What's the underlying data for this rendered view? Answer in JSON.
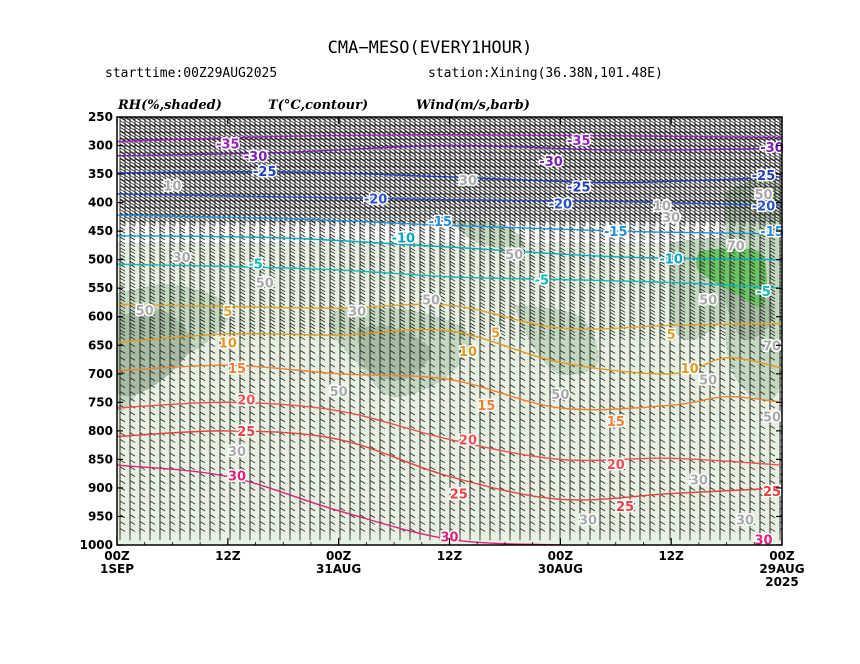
{
  "header": {
    "title": "CMA−MESO(EVERY1HOUR)",
    "starttime": "starttime:00Z29AUG2025",
    "station": "station:Xining(36.38N,101.48E)"
  },
  "legend": {
    "rh": "RH(%,shaded)",
    "temp": "T(°C,contour)",
    "wind": "Wind(m/s,barb)"
  },
  "chart_data": {
    "type": "time-height cross section",
    "y_axis": {
      "ticks": [
        250,
        300,
        350,
        400,
        450,
        500,
        550,
        600,
        650,
        700,
        750,
        800,
        850,
        900,
        950,
        1000
      ],
      "range": [
        250,
        1000
      ],
      "direction": "pressure increases downward"
    },
    "x_axis": {
      "range_hours": [
        72,
        0
      ],
      "direction": "time decreases to the right",
      "ticks": [
        {
          "hour": 72,
          "label": "00Z",
          "sub": "1SEP"
        },
        {
          "hour": 60,
          "label": "12Z",
          "sub": ""
        },
        {
          "hour": 48,
          "label": "00Z",
          "sub": "31AUG"
        },
        {
          "hour": 36,
          "label": "12Z",
          "sub": ""
        },
        {
          "hour": 24,
          "label": "00Z",
          "sub": "30AUG"
        },
        {
          "hour": 12,
          "label": "12Z",
          "sub": ""
        },
        {
          "hour": 0,
          "label": "00Z",
          "sub": "29AUG",
          "sub2": "2025"
        }
      ]
    },
    "temperature_contours": [
      {
        "value": -35,
        "color": "#9a1fc0",
        "points": [
          [
            72,
            293
          ],
          [
            54,
            284
          ],
          [
            36,
            281
          ],
          [
            18,
            283
          ],
          [
            0,
            286
          ]
        ]
      },
      {
        "value": -30,
        "color": "#7a1fb0",
        "points": [
          [
            72,
            318
          ],
          [
            54,
            312
          ],
          [
            36,
            300
          ],
          [
            18,
            308
          ],
          [
            0,
            305
          ]
        ]
      },
      {
        "value": -25,
        "color": "#1f3fc0",
        "points": [
          [
            72,
            348
          ],
          [
            54,
            346
          ],
          [
            36,
            355
          ],
          [
            18,
            365
          ],
          [
            0,
            355
          ]
        ]
      },
      {
        "value": -20,
        "color": "#2a50c8",
        "points": [
          [
            72,
            385
          ],
          [
            54,
            390
          ],
          [
            36,
            395
          ],
          [
            18,
            398
          ],
          [
            0,
            405
          ]
        ]
      },
      {
        "value": -15,
        "color": "#1f8fe0",
        "points": [
          [
            72,
            422
          ],
          [
            54,
            428
          ],
          [
            36,
            440
          ],
          [
            18,
            450
          ],
          [
            0,
            455
          ]
        ]
      },
      {
        "value": -10,
        "color": "#00a8c0",
        "points": [
          [
            72,
            458
          ],
          [
            54,
            462
          ],
          [
            36,
            478
          ],
          [
            18,
            495
          ],
          [
            0,
            500
          ]
        ]
      },
      {
        "value": -5,
        "color": "#10b8b8",
        "points": [
          [
            72,
            508
          ],
          [
            60,
            512
          ],
          [
            48,
            518
          ],
          [
            36,
            530
          ],
          [
            24,
            535
          ],
          [
            12,
            540
          ],
          [
            0,
            550
          ]
        ]
      },
      {
        "value": 5,
        "color": "#e0a030",
        "points": [
          [
            72,
            578
          ],
          [
            60,
            582
          ],
          [
            48,
            585
          ],
          [
            36,
            580
          ],
          [
            24,
            620
          ],
          [
            12,
            615
          ],
          [
            0,
            612
          ]
        ]
      },
      {
        "value": 10,
        "color": "#e09820",
        "points": [
          [
            72,
            645
          ],
          [
            60,
            630
          ],
          [
            48,
            632
          ],
          [
            36,
            625
          ],
          [
            24,
            680
          ],
          [
            12,
            700
          ],
          [
            6,
            672
          ],
          [
            0,
            690
          ]
        ]
      },
      {
        "value": 15,
        "color": "#f08030",
        "points": [
          [
            72,
            695
          ],
          [
            60,
            685
          ],
          [
            48,
            700
          ],
          [
            36,
            710
          ],
          [
            24,
            760
          ],
          [
            12,
            755
          ],
          [
            6,
            740
          ],
          [
            0,
            750
          ]
        ]
      },
      {
        "value": 20,
        "color": "#f05050",
        "points": [
          [
            72,
            760
          ],
          [
            60,
            750
          ],
          [
            48,
            765
          ],
          [
            36,
            815
          ],
          [
            24,
            850
          ],
          [
            12,
            848
          ],
          [
            0,
            860
          ]
        ]
      },
      {
        "value": 25,
        "color": "#e84040",
        "points": [
          [
            72,
            810
          ],
          [
            60,
            800
          ],
          [
            48,
            815
          ],
          [
            36,
            880
          ],
          [
            24,
            920
          ],
          [
            12,
            910
          ],
          [
            0,
            900
          ]
        ]
      },
      {
        "value": 30,
        "color": "#e0207a",
        "points": [
          [
            72,
            860
          ],
          [
            60,
            880
          ],
          [
            48,
            940
          ],
          [
            36,
            990
          ],
          [
            24,
            1000
          ]
        ]
      }
    ],
    "contour_labels": [
      {
        "value": -35,
        "at": [
          60,
          296
        ]
      },
      {
        "value": -35,
        "at": [
          22,
          290
        ]
      },
      {
        "value": -30,
        "at": [
          57,
          318
        ]
      },
      {
        "value": -30,
        "at": [
          25,
          327
        ]
      },
      {
        "value": -30,
        "at": [
          0,
          303
        ]
      },
      {
        "value": -25,
        "at": [
          56,
          345
        ]
      },
      {
        "value": -25,
        "at": [
          22,
          372
        ]
      },
      {
        "value": -25,
        "at": [
          2,
          352
        ]
      },
      {
        "value": -20,
        "at": [
          44,
          393
        ]
      },
      {
        "value": -20,
        "at": [
          24,
          402
        ]
      },
      {
        "value": -20,
        "at": [
          2,
          405
        ]
      },
      {
        "value": -15,
        "at": [
          37,
          432
        ]
      },
      {
        "value": -15,
        "at": [
          18,
          450
        ]
      },
      {
        "value": -15,
        "at": [
          0,
          450
        ]
      },
      {
        "value": -10,
        "at": [
          41,
          461
        ]
      },
      {
        "value": -10,
        "at": [
          12,
          498
        ]
      },
      {
        "value": -5,
        "at": [
          57,
          507
        ]
      },
      {
        "value": -5,
        "at": [
          26,
          535
        ]
      },
      {
        "value": -5,
        "at": [
          2,
          555
        ]
      },
      {
        "value": 5,
        "at": [
          60,
          590
        ]
      },
      {
        "value": 5,
        "at": [
          31,
          628
        ]
      },
      {
        "value": 5,
        "at": [
          12,
          630
        ]
      },
      {
        "value": 10,
        "at": [
          60,
          645
        ]
      },
      {
        "value": 10,
        "at": [
          34,
          660
        ]
      },
      {
        "value": 10,
        "at": [
          10,
          690
        ]
      },
      {
        "value": 15,
        "at": [
          59,
          690
        ]
      },
      {
        "value": 15,
        "at": [
          32,
          755
        ]
      },
      {
        "value": 15,
        "at": [
          18,
          783
        ]
      },
      {
        "value": 20,
        "at": [
          58,
          745
        ]
      },
      {
        "value": 20,
        "at": [
          34,
          815
        ]
      },
      {
        "value": 20,
        "at": [
          18,
          858
        ]
      },
      {
        "value": 25,
        "at": [
          58,
          800
        ]
      },
      {
        "value": 25,
        "at": [
          35,
          910
        ]
      },
      {
        "value": 25,
        "at": [
          17,
          932
        ]
      },
      {
        "value": 25,
        "at": [
          0,
          905
        ]
      },
      {
        "value": 30,
        "at": [
          59,
          878
        ]
      },
      {
        "value": 30,
        "at": [
          36,
          985
        ]
      },
      {
        "value": 30,
        "at": [
          2,
          990
        ]
      }
    ],
    "rh_labels": [
      {
        "value": 10,
        "at": [
          66,
          370
        ]
      },
      {
        "value": 30,
        "at": [
          34,
          360
        ]
      },
      {
        "value": 10,
        "at": [
          13,
          405
        ]
      },
      {
        "value": 50,
        "at": [
          2,
          385
        ]
      },
      {
        "value": 30,
        "at": [
          12,
          425
        ]
      },
      {
        "value": 30,
        "at": [
          65,
          495
        ]
      },
      {
        "value": 50,
        "at": [
          29,
          490
        ]
      },
      {
        "value": 70,
        "at": [
          5,
          475
        ]
      },
      {
        "value": 50,
        "at": [
          56,
          540
        ]
      },
      {
        "value": 30,
        "at": [
          46,
          590
        ]
      },
      {
        "value": 50,
        "at": [
          38,
          570
        ]
      },
      {
        "value": 50,
        "at": [
          69,
          588
        ]
      },
      {
        "value": 50,
        "at": [
          8,
          570
        ]
      },
      {
        "value": 70,
        "at": [
          0,
          650
        ]
      },
      {
        "value": 50,
        "at": [
          48,
          730
        ]
      },
      {
        "value": 50,
        "at": [
          24,
          735
        ]
      },
      {
        "value": 50,
        "at": [
          8,
          710
        ]
      },
      {
        "value": 50,
        "at": [
          0,
          775
        ]
      },
      {
        "value": 30,
        "at": [
          59,
          835
        ]
      },
      {
        "value": 30,
        "at": [
          9,
          885
        ]
      },
      {
        "value": 30,
        "at": [
          4,
          955
        ]
      },
      {
        "value": 30,
        "at": [
          21,
          955
        ]
      }
    ],
    "rh_shading": {
      "light": "#e6f1e2",
      "medium": "#c2d9bf",
      "dark": "#a7bda3",
      "saturated": "#6cc465"
    },
    "wind_barbs": "dense wind barbs at every level and hour (westerly, stronger aloft)"
  }
}
